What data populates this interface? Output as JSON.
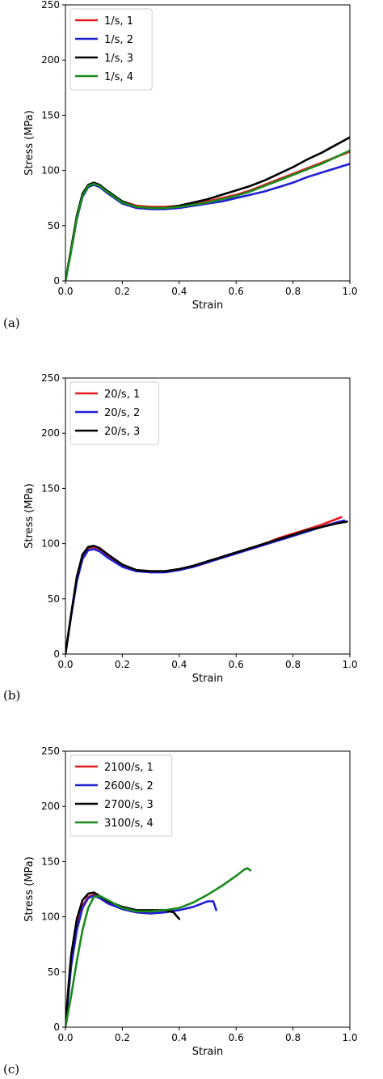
{
  "chart_data": [
    {
      "type": "line",
      "panel_label": "(a)",
      "xlabel": "Strain",
      "ylabel": "Stress (MPa)",
      "xlim": [
        0,
        1.0
      ],
      "ylim": [
        0,
        250
      ],
      "xticks": [
        0.0,
        0.2,
        0.4,
        0.6,
        0.8,
        1.0
      ],
      "yticks": [
        0,
        50,
        100,
        150,
        200,
        250
      ],
      "xtick_labels": [
        "0.0",
        "0.2",
        "0.4",
        "0.6",
        "0.8",
        "1.0"
      ],
      "ytick_labels": [
        "0",
        "50",
        "100",
        "150",
        "200",
        "250"
      ],
      "grid": false,
      "legend": "top-left",
      "series": [
        {
          "name": "1/s, 1",
          "color": "#e41a1c",
          "x": [
            0,
            0.02,
            0.04,
            0.06,
            0.08,
            0.1,
            0.12,
            0.15,
            0.2,
            0.25,
            0.3,
            0.35,
            0.4,
            0.45,
            0.5,
            0.55,
            0.6,
            0.65,
            0.7,
            0.75,
            0.8,
            0.85,
            0.9,
            0.95,
            1.0
          ],
          "y": [
            0,
            28,
            58,
            78,
            87,
            88,
            86,
            80,
            72,
            68,
            67,
            67,
            68,
            70,
            72,
            75,
            78,
            82,
            87,
            92,
            97,
            102,
            107,
            112,
            117
          ]
        },
        {
          "name": "1/s, 2",
          "color": "#1f1fd6",
          "x": [
            0,
            0.02,
            0.04,
            0.06,
            0.08,
            0.1,
            0.12,
            0.15,
            0.2,
            0.25,
            0.3,
            0.35,
            0.4,
            0.45,
            0.5,
            0.55,
            0.6,
            0.65,
            0.7,
            0.75,
            0.8,
            0.85,
            0.9,
            0.95,
            1.0
          ],
          "y": [
            0,
            27,
            56,
            76,
            85,
            87,
            85,
            79,
            70,
            66,
            65,
            65,
            66,
            68,
            70,
            72,
            75,
            78,
            81,
            85,
            89,
            94,
            98,
            102,
            106
          ]
        },
        {
          "name": "1/s, 3",
          "color": "#000000",
          "x": [
            0,
            0.02,
            0.04,
            0.06,
            0.08,
            0.1,
            0.12,
            0.15,
            0.2,
            0.25,
            0.3,
            0.35,
            0.4,
            0.45,
            0.5,
            0.55,
            0.6,
            0.65,
            0.7,
            0.75,
            0.8,
            0.85,
            0.9,
            0.95,
            1.0
          ],
          "y": [
            0,
            29,
            59,
            79,
            87,
            89,
            87,
            81,
            72,
            67,
            66,
            66,
            68,
            71,
            74,
            78,
            82,
            86,
            91,
            97,
            103,
            110,
            116,
            123,
            130
          ]
        },
        {
          "name": "1/s, 4",
          "color": "#1a8a1a",
          "x": [
            0,
            0.02,
            0.04,
            0.06,
            0.08,
            0.1,
            0.12,
            0.15,
            0.2,
            0.25,
            0.3,
            0.35,
            0.4,
            0.45,
            0.5,
            0.55,
            0.6,
            0.65,
            0.7,
            0.75,
            0.8,
            0.85,
            0.9,
            0.95,
            1.0
          ],
          "y": [
            0,
            27,
            57,
            77,
            86,
            88,
            86,
            80,
            71,
            67,
            66,
            66,
            67,
            69,
            71,
            74,
            77,
            81,
            86,
            91,
            96,
            101,
            106,
            112,
            118
          ]
        }
      ]
    },
    {
      "type": "line",
      "panel_label": "(b)",
      "xlabel": "Strain",
      "ylabel": "Stress (MPa)",
      "xlim": [
        0,
        1.0
      ],
      "ylim": [
        0,
        250
      ],
      "xticks": [
        0.0,
        0.2,
        0.4,
        0.6,
        0.8,
        1.0
      ],
      "yticks": [
        0,
        50,
        100,
        150,
        200,
        250
      ],
      "xtick_labels": [
        "0.0",
        "0.2",
        "0.4",
        "0.6",
        "0.8",
        "1.0"
      ],
      "ytick_labels": [
        "0",
        "50",
        "100",
        "150",
        "200",
        "250"
      ],
      "grid": false,
      "legend": "top-left",
      "series": [
        {
          "name": "20/s, 1",
          "color": "#e41a1c",
          "x": [
            0,
            0.02,
            0.04,
            0.06,
            0.08,
            0.1,
            0.12,
            0.15,
            0.2,
            0.25,
            0.3,
            0.35,
            0.4,
            0.45,
            0.5,
            0.55,
            0.6,
            0.65,
            0.7,
            0.75,
            0.8,
            0.85,
            0.9,
            0.95,
            0.97
          ],
          "y": [
            0,
            35,
            68,
            88,
            96,
            97,
            95,
            89,
            80,
            76,
            75,
            75,
            77,
            79,
            83,
            88,
            92,
            96,
            100,
            105,
            109,
            113,
            117,
            122,
            124
          ]
        },
        {
          "name": "20/s, 2",
          "color": "#1f1fd6",
          "x": [
            0,
            0.02,
            0.04,
            0.06,
            0.08,
            0.1,
            0.12,
            0.15,
            0.2,
            0.25,
            0.3,
            0.35,
            0.4,
            0.45,
            0.5,
            0.55,
            0.6,
            0.65,
            0.7,
            0.75,
            0.8,
            0.85,
            0.9,
            0.95,
            0.98
          ],
          "y": [
            0,
            34,
            66,
            86,
            94,
            95,
            93,
            87,
            79,
            75,
            74,
            74,
            76,
            79,
            83,
            87,
            91,
            95,
            99,
            103,
            107,
            111,
            115,
            119,
            121
          ]
        },
        {
          "name": "20/s, 3",
          "color": "#000000",
          "x": [
            0,
            0.02,
            0.04,
            0.06,
            0.08,
            0.1,
            0.12,
            0.15,
            0.2,
            0.25,
            0.3,
            0.35,
            0.4,
            0.45,
            0.5,
            0.55,
            0.6,
            0.65,
            0.7,
            0.75,
            0.8,
            0.85,
            0.9,
            0.95,
            0.99
          ],
          "y": [
            0,
            36,
            70,
            90,
            97,
            98,
            96,
            90,
            81,
            76,
            75,
            75,
            77,
            80,
            84,
            88,
            92,
            96,
            100,
            104,
            108,
            112,
            115,
            118,
            120
          ]
        }
      ]
    },
    {
      "type": "line",
      "panel_label": "(c)",
      "xlabel": "Strain",
      "ylabel": "Stress (MPa)",
      "xlim": [
        0,
        1.0
      ],
      "ylim": [
        0,
        250
      ],
      "xticks": [
        0.0,
        0.2,
        0.4,
        0.6,
        0.8,
        1.0
      ],
      "yticks": [
        0,
        50,
        100,
        150,
        200,
        250
      ],
      "xtick_labels": [
        "0.0",
        "0.2",
        "0.4",
        "0.6",
        "0.8",
        "1.0"
      ],
      "ytick_labels": [
        "0",
        "50",
        "100",
        "150",
        "200",
        "250"
      ],
      "grid": false,
      "legend": "top-left",
      "series": [
        {
          "name": "2100/s, 1",
          "color": "#e41a1c",
          "x": [
            0,
            0.01,
            0.02,
            0.04,
            0.06,
            0.08,
            0.1,
            0.12,
            0.15,
            0.2,
            0.25,
            0.3,
            0.35,
            0.38
          ],
          "y": [
            0,
            30,
            60,
            92,
            110,
            118,
            120,
            117,
            112,
            107,
            104,
            103,
            104,
            106
          ]
        },
        {
          "name": "2600/s, 2",
          "color": "#1f1fd6",
          "x": [
            0,
            0.01,
            0.02,
            0.04,
            0.06,
            0.08,
            0.1,
            0.12,
            0.15,
            0.2,
            0.25,
            0.3,
            0.35,
            0.4,
            0.45,
            0.5,
            0.52,
            0.53
          ],
          "y": [
            0,
            28,
            55,
            88,
            108,
            117,
            119,
            117,
            112,
            107,
            104,
            103,
            104,
            106,
            109,
            114,
            114,
            106
          ]
        },
        {
          "name": "2700/s, 3",
          "color": "#000000",
          "x": [
            0,
            0.01,
            0.02,
            0.04,
            0.06,
            0.08,
            0.1,
            0.12,
            0.15,
            0.2,
            0.25,
            0.3,
            0.35,
            0.38,
            0.4
          ],
          "y": [
            0,
            35,
            65,
            98,
            115,
            121,
            122,
            119,
            114,
            109,
            106,
            106,
            106,
            104,
            98
          ]
        },
        {
          "name": "3100/s, 4",
          "color": "#1a8a1a",
          "x": [
            0,
            0.02,
            0.04,
            0.06,
            0.08,
            0.1,
            0.12,
            0.15,
            0.2,
            0.25,
            0.3,
            0.35,
            0.4,
            0.45,
            0.5,
            0.55,
            0.6,
            0.63,
            0.64,
            0.65
          ],
          "y": [
            0,
            28,
            60,
            88,
            108,
            118,
            119,
            115,
            108,
            105,
            105,
            106,
            108,
            113,
            120,
            128,
            137,
            143,
            144,
            142
          ]
        }
      ]
    }
  ]
}
